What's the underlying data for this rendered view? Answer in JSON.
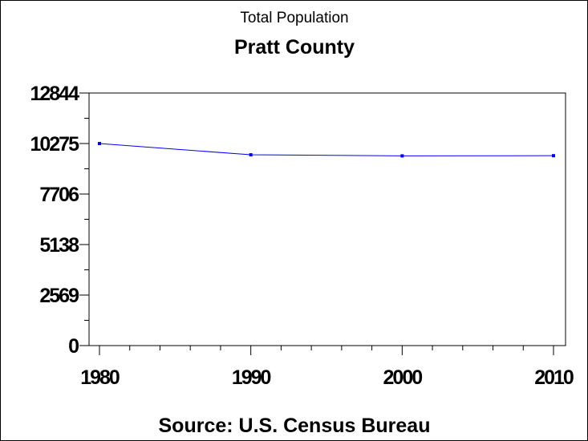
{
  "chart_data": {
    "type": "line",
    "title": "Total Population",
    "subtitle": "Pratt County",
    "footnote": "Source: U.S. Census Bureau",
    "xlabel": "",
    "ylabel": "",
    "x": [
      1980,
      1990,
      2000,
      2010
    ],
    "series": [
      {
        "values": [
          10275,
          9702,
          9647,
          9656
        ],
        "color": "#0000ff"
      }
    ],
    "xlim": [
      1979,
      2011
    ],
    "ylim": [
      0,
      12844
    ],
    "x_ticks": [
      "1980",
      "1990",
      "2000",
      "2010"
    ],
    "y_ticks": [
      "0",
      "2569",
      "5138",
      "7706",
      "10275",
      "12844"
    ],
    "grid": false,
    "legend": "none"
  }
}
